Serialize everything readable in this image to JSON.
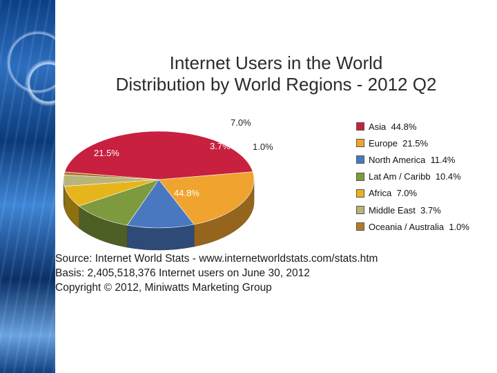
{
  "chart_data": {
    "type": "pie",
    "title": "Internet Users in the World",
    "subtitle": "Distribution by World Regions - 2012 Q2",
    "slices": [
      {
        "label": "Asia",
        "value": 44.8,
        "display": "44.8%",
        "color": "#c8203f"
      },
      {
        "label": "Europe",
        "value": 21.5,
        "display": "21.5%",
        "color": "#f0a32e"
      },
      {
        "label": "North America",
        "value": 11.4,
        "display": "11.4%",
        "color": "#4a78c0"
      },
      {
        "label": "Lat Am / Caribb",
        "value": 10.4,
        "display": "10.4%",
        "color": "#7e9a3e"
      },
      {
        "label": "Africa",
        "value": 7.0,
        "display": "7.0%",
        "color": "#e6b51c"
      },
      {
        "label": "Middle East",
        "value": 3.7,
        "display": "3.7%",
        "color": "#b8b47a"
      },
      {
        "label": "Oceania / Australia",
        "value": 1.0,
        "display": "1.0%",
        "color": "#b27a2e"
      }
    ],
    "legend_position": "right"
  },
  "footer": {
    "source": "Source: Internet World Stats -  www.internetworldstats.com/stats.htm",
    "basis": "Basis: 2,405,518,376 Internet users on June 30, 2012",
    "copyright": "Copyright © 2012, Miniwatts Marketing Group"
  }
}
